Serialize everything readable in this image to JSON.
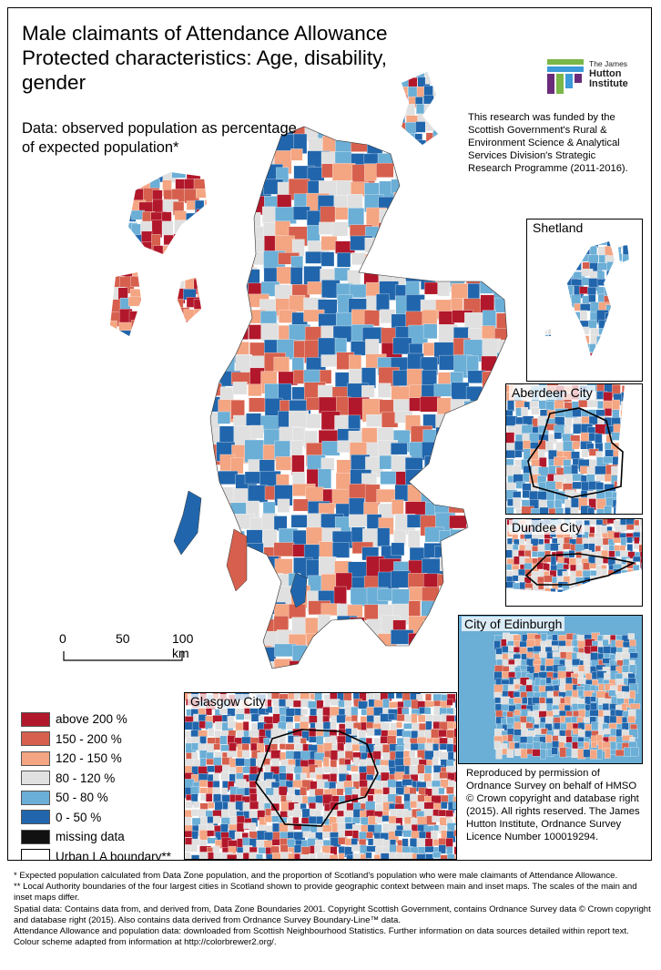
{
  "title_lines": [
    "Male claimants of Attendance Allowance",
    "Protected characteristics: Age, disability,",
    "gender"
  ],
  "subtitle_lines": [
    "Data: observed population as percentage",
    "of expected population*"
  ],
  "funding_lines": [
    "This research was funded by the",
    "Scottish Government's Rural &",
    "Environment Science & Analytical",
    "Services Division's Strategic",
    "Research Programme (2011-2016)."
  ],
  "logo": {
    "line1": "The James",
    "line2": "Hutton",
    "line3": "Institute"
  },
  "insets": {
    "shetland": "Shetland",
    "aberdeen": "Aberdeen City",
    "dundee": "Dundee City",
    "edinburgh": "City of Edinburgh",
    "glasgow": "Glasgow City"
  },
  "scalebar": {
    "labels": [
      "0",
      "50",
      "100 km"
    ]
  },
  "legend": [
    {
      "label": "above 200 %",
      "color": "#b2182b"
    },
    {
      "label": "150 - 200 %",
      "color": "#d6604d"
    },
    {
      "label": "120 - 150 %",
      "color": "#f4a582"
    },
    {
      "label": "80 - 120 %",
      "color": "#e0e0e0"
    },
    {
      "label": "50 - 80 %",
      "color": "#6baed6"
    },
    {
      "label": "0 - 50 %",
      "color": "#2166ac"
    },
    {
      "label": "missing data",
      "color": "#111111"
    },
    {
      "label": "Urban LA boundary**",
      "color": "#ffffff"
    }
  ],
  "copyright_lines": [
    "Reproduced by permission of",
    "Ordnance Survey on behalf of HMSO",
    "© Crown copyright and database right",
    "(2015). All rights reserved. The James",
    "Hutton Institute, Ordnance Survey",
    "Licence Number 100019294."
  ],
  "footnotes": [
    "* Expected population calculated from Data Zone population, and the proportion of Scotland's population who were male claimants of  Attendance Allowance.",
    "** Local Authority boundaries of the four largest cities in Scotland shown to provide geographic context between main and inset maps. The scales of the main and inset maps differ.",
    "Spatial data: Contains data from, and derived from, Data Zone Boundaries 2001. Copyright Scottish Government, contains Ordnance Survey data © Crown copyright and database right (2015). Also contains data derived from Ordnance Survey Boundary-Line™ data.",
    "Attendance Allowance and population data: downloaded from Scottish Neighbourhood Statistics. Further information on data sources detailed within report text. Colour scheme adapted from information at http://colorbrewer2.org/."
  ]
}
